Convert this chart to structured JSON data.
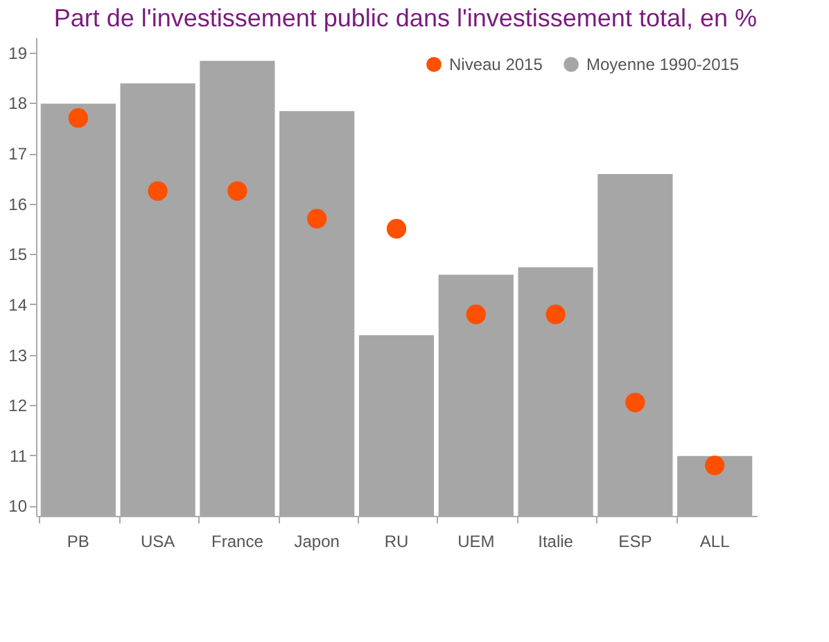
{
  "chart_data": {
    "type": "bar",
    "title": "Part de l'investissement public dans l'investissement total, en %",
    "categories": [
      "PB",
      "USA",
      "France",
      "Japon",
      "RU",
      "UEM",
      "Italie",
      "ESP",
      "ALL"
    ],
    "series": [
      {
        "name": "Moyenne 1990-2015",
        "color": "#a6a6a6",
        "values": [
          18.0,
          18.4,
          18.85,
          17.85,
          13.4,
          14.6,
          14.75,
          16.6,
          11.0
        ]
      },
      {
        "name": "Niveau 2015",
        "type": "scatter",
        "color": "#ff4f00",
        "values": [
          17.7,
          16.25,
          16.25,
          15.7,
          15.5,
          13.8,
          13.8,
          12.05,
          10.8
        ]
      }
    ],
    "ylim": [
      9.8,
      19.3
    ],
    "yticks": [
      10,
      11,
      12,
      13,
      14,
      15,
      16,
      17,
      18,
      19
    ],
    "grid": false,
    "legend": "top right",
    "marker": "circle"
  }
}
